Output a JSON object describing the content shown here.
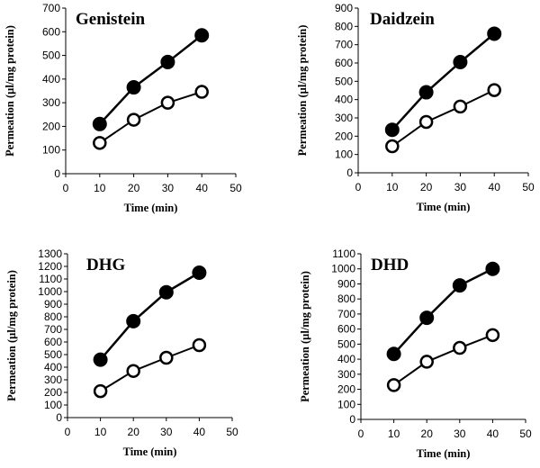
{
  "chart_data": [
    {
      "type": "line",
      "title": "Genistein",
      "xlabel": "Time (min)",
      "ylabel": "Permeation (µl/mg protein)",
      "xlim": [
        0,
        50
      ],
      "ylim": [
        0,
        700
      ],
      "xticks": [
        0,
        10,
        20,
        30,
        40,
        50
      ],
      "yticks": [
        0,
        100,
        200,
        300,
        400,
        500,
        600,
        700
      ],
      "x": [
        10,
        20,
        30,
        40
      ],
      "series": [
        {
          "name": "filled",
          "marker": "filled-circle",
          "values": [
            210,
            365,
            472,
            585
          ]
        },
        {
          "name": "open",
          "marker": "open-circle",
          "values": [
            130,
            228,
            300,
            346
          ]
        }
      ]
    },
    {
      "type": "line",
      "title": "Daidzein",
      "xlabel": "Time (min)",
      "ylabel": "Permeation (µl/mg protein)",
      "xlim": [
        0,
        50
      ],
      "ylim": [
        0,
        900
      ],
      "xticks": [
        0,
        10,
        20,
        30,
        40,
        50
      ],
      "yticks": [
        0,
        100,
        200,
        300,
        400,
        500,
        600,
        700,
        800,
        900
      ],
      "x": [
        10,
        20,
        30,
        40
      ],
      "series": [
        {
          "name": "filled",
          "marker": "filled-circle",
          "values": [
            235,
            440,
            605,
            760
          ]
        },
        {
          "name": "open",
          "marker": "open-circle",
          "values": [
            145,
            278,
            362,
            452
          ]
        }
      ]
    },
    {
      "type": "line",
      "title": "DHG",
      "xlabel": "Time (min)",
      "ylabel": "Permeation (µl/mg protein)",
      "xlim": [
        0,
        50
      ],
      "ylim": [
        0,
        1300
      ],
      "xticks": [
        0,
        10,
        20,
        30,
        40,
        50
      ],
      "yticks": [
        0,
        100,
        200,
        300,
        400,
        500,
        600,
        700,
        800,
        900,
        1000,
        1100,
        1200,
        1300
      ],
      "x": [
        10,
        20,
        30,
        40
      ],
      "series": [
        {
          "name": "filled",
          "marker": "filled-circle",
          "values": [
            460,
            765,
            995,
            1150
          ]
        },
        {
          "name": "open",
          "marker": "open-circle",
          "values": [
            210,
            370,
            475,
            575
          ]
        }
      ]
    },
    {
      "type": "line",
      "title": "DHD",
      "xlabel": "Time (min)",
      "ylabel": "Permeation (µl/mg protein)",
      "xlim": [
        0,
        50
      ],
      "ylim": [
        0,
        1100
      ],
      "xticks": [
        0,
        10,
        20,
        30,
        40,
        50
      ],
      "yticks": [
        0,
        100,
        200,
        300,
        400,
        500,
        600,
        700,
        800,
        900,
        1000,
        1100
      ],
      "x": [
        10,
        20,
        30,
        40
      ],
      "series": [
        {
          "name": "filled",
          "marker": "filled-circle",
          "values": [
            435,
            675,
            890,
            1000
          ]
        },
        {
          "name": "open",
          "marker": "open-circle",
          "values": [
            228,
            383,
            475,
            560
          ]
        }
      ]
    }
  ]
}
